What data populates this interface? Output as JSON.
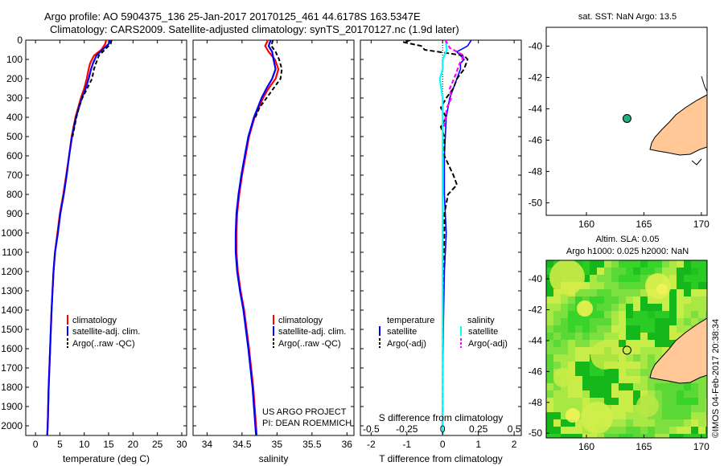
{
  "header": {
    "title_line1": "Argo profile: AO 5904375_136 25-Jan-2017 20170125_461 44.6178S 163.5347E",
    "title_line2": "Climatology: CARS2009. Satellite-adjusted climatology: synTS_20170127.nc (1.9d later)"
  },
  "colors": {
    "climatology": "#ff0000",
    "satellite": "#0000ff",
    "argo": "#000000",
    "salinity_sat": "#00ffff",
    "salinity_argo": "#ff00ff",
    "land": "#ffc896",
    "sla_field": "#22d02a",
    "marker": "#20b080"
  },
  "annotations": {
    "project": "US ARGO PROJECT",
    "pi": "PI: DEAN ROEMMICH",
    "watermark": "©IMOS 04-Feb-2017 20:38:34"
  },
  "chart_data": [
    {
      "id": "temperature",
      "type": "line",
      "xlabel": "temperature (deg C)",
      "ylabel": "",
      "xlim": [
        -2,
        31
      ],
      "ylim": [
        2050,
        0
      ],
      "xticks": [
        "0",
        "5",
        "10",
        "15",
        "20",
        "25",
        "30"
      ],
      "xtick_values": [
        0,
        5,
        10,
        15,
        20,
        25,
        30
      ],
      "yticks": [
        "0",
        "100",
        "200",
        "300",
        "400",
        "500",
        "600",
        "700",
        "800",
        "900",
        "1000",
        "1100",
        "1200",
        "1300",
        "1400",
        "1500",
        "1600",
        "1700",
        "1800",
        "1900",
        "2000"
      ],
      "ytick_values": [
        0,
        100,
        200,
        300,
        400,
        500,
        600,
        700,
        800,
        900,
        1000,
        1100,
        1200,
        1300,
        1400,
        1500,
        1600,
        1700,
        1800,
        1900,
        2000
      ],
      "legend": [
        "climatology",
        "satellite-adj. clim.",
        "Argo(..raw -QC)"
      ],
      "series": [
        {
          "name": "climatology",
          "depth": [
            0,
            20,
            50,
            80,
            120,
            150,
            200,
            250,
            300,
            400,
            500,
            600,
            700,
            800,
            900,
            1000,
            1100,
            1200,
            1400,
            1600,
            1800,
            2000,
            2050
          ],
          "values": [
            14.5,
            14.3,
            13.5,
            12.0,
            11.2,
            10.9,
            10.5,
            10.0,
            9.3,
            8.2,
            7.4,
            6.9,
            6.3,
            5.7,
            5.0,
            4.5,
            4.0,
            3.7,
            3.3,
            3.0,
            2.7,
            2.5,
            2.4
          ]
        },
        {
          "name": "satellite-adj. clim.",
          "depth": [
            0,
            20,
            50,
            80,
            120,
            150,
            200,
            250,
            300,
            400,
            500,
            600,
            700,
            800,
            900,
            1000,
            1100,
            1200,
            1400,
            1600,
            1800,
            2000,
            2050
          ],
          "values": [
            15.3,
            15.0,
            13.7,
            12.5,
            11.8,
            11.4,
            10.9,
            10.3,
            9.5,
            8.3,
            7.5,
            6.9,
            6.4,
            5.8,
            5.1,
            4.6,
            4.0,
            3.7,
            3.3,
            3.0,
            2.7,
            2.5,
            2.4
          ]
        },
        {
          "name": "Argo(..raw -QC)",
          "depth": [
            0,
            20,
            50,
            80,
            120,
            150,
            200,
            250,
            300,
            350,
            400,
            500
          ],
          "values": [
            15.6,
            15.4,
            14.2,
            13.0,
            12.4,
            12.0,
            11.6,
            10.6,
            9.6,
            8.9,
            8.4,
            7.6
          ]
        }
      ]
    },
    {
      "id": "salinity",
      "type": "line",
      "xlabel": "salinity",
      "xlim": [
        33.8,
        36.1
      ],
      "ylim": [
        2050,
        0
      ],
      "xticks": [
        "34",
        "34.5",
        "35",
        "35.5",
        "36"
      ],
      "xtick_values": [
        34,
        34.5,
        35,
        35.5,
        36
      ],
      "legend": [
        "climatology",
        "satellite-adj. clim.",
        "Argo(..raw -QC)"
      ],
      "series": [
        {
          "name": "climatology",
          "depth": [
            0,
            30,
            60,
            100,
            150,
            200,
            250,
            300,
            400,
            500,
            600,
            700,
            800,
            900,
            1000,
            1100,
            1200,
            1300,
            1400,
            1600,
            1800,
            2000,
            2050
          ],
          "values": [
            34.87,
            34.83,
            34.88,
            34.97,
            35.02,
            34.98,
            34.88,
            34.8,
            34.68,
            34.6,
            34.55,
            34.5,
            34.46,
            34.43,
            34.42,
            34.42,
            34.44,
            34.48,
            34.53,
            34.6,
            34.66,
            34.7,
            34.71
          ]
        },
        {
          "name": "satellite-adj. clim.",
          "depth": [
            0,
            30,
            60,
            100,
            150,
            200,
            250,
            300,
            400,
            500,
            600,
            700,
            800,
            900,
            1000,
            1100,
            1200,
            1300,
            1400,
            1600,
            1800,
            2000,
            2050
          ],
          "values": [
            34.91,
            34.88,
            34.93,
            34.95,
            34.98,
            34.93,
            34.85,
            34.78,
            34.67,
            34.59,
            34.54,
            34.49,
            34.45,
            34.42,
            34.41,
            34.41,
            34.43,
            34.47,
            34.52,
            34.59,
            34.65,
            34.69,
            34.7
          ]
        },
        {
          "name": "Argo(..raw -QC)",
          "depth": [
            0,
            30,
            60,
            100,
            150,
            200,
            250,
            300,
            350,
            400
          ],
          "values": [
            34.94,
            34.92,
            34.98,
            35.03,
            35.07,
            35.05,
            34.95,
            34.85,
            34.75,
            34.69
          ]
        }
      ]
    },
    {
      "id": "difference",
      "type": "line",
      "xlabel": "T difference from climatology",
      "xlabel_top": "S difference from climatology",
      "xlim": [
        -2.3,
        2.2
      ],
      "ylim": [
        2050,
        0
      ],
      "xticks": [
        "-2",
        "-1",
        "0",
        "1",
        "2"
      ],
      "xtick_values": [
        -2,
        -1,
        0,
        1,
        2
      ],
      "sticks": [
        "-0.5",
        "-0.25",
        "0",
        "0.25",
        "0.5"
      ],
      "stick_values": [
        -0.5,
        -0.25,
        0,
        0.25,
        0.5
      ],
      "legend_temperature_title": "temperature",
      "legend_salinity_title": "salinity",
      "legend": [
        "satellite",
        "Argo(-adj)",
        "satellite",
        "Argo(-adj)"
      ],
      "series": [
        {
          "name": "temperature satellite",
          "depth": [
            0,
            30,
            60,
            100,
            120,
            150,
            200,
            300,
            400,
            600,
            800,
            1000,
            1200,
            1500,
            1800,
            2050
          ],
          "values": [
            0.8,
            0.7,
            0.4,
            0.6,
            0.5,
            0.5,
            0.4,
            0.2,
            0.1,
            0.05,
            0.05,
            0.1,
            0.05,
            0.02,
            0.0,
            0.0
          ]
        },
        {
          "name": "temperature Argo(-adj)",
          "depth": [
            0,
            10,
            30,
            50,
            80,
            100,
            150,
            200,
            250,
            300,
            350,
            400,
            450,
            500,
            600,
            700,
            750,
            800,
            850,
            900,
            1000,
            1200,
            1500,
            2050
          ],
          "values": [
            -0.9,
            -1.1,
            -0.6,
            -0.5,
            0.6,
            0.7,
            0.6,
            0.4,
            0.3,
            0.1,
            -0.05,
            0.1,
            -0.05,
            0.05,
            0.05,
            0.3,
            0.4,
            0.15,
            0.1,
            0.05,
            0.05,
            0.02,
            0.0,
            0.0
          ]
        },
        {
          "name": "salinity satellite",
          "depth": [
            0,
            50,
            100,
            150,
            200,
            300,
            400,
            600,
            800,
            1000,
            1500,
            2050
          ],
          "values": [
            0.02,
            0.03,
            0.0,
            0.0,
            -0.02,
            0.0,
            0.0,
            0.0,
            0.0,
            0.0,
            0.0,
            0.0
          ]
        },
        {
          "name": "salinity Argo(-adj)",
          "depth": [
            0,
            40,
            80,
            120,
            160,
            200,
            250,
            300,
            350,
            400,
            450
          ],
          "values": [
            0.02,
            0.05,
            0.15,
            0.12,
            0.1,
            0.08,
            0.05,
            0.06,
            0.03,
            0.02,
            0.01
          ]
        }
      ]
    },
    {
      "id": "sst_map",
      "type": "scatter",
      "title": "sat. SST: NaN Argo: 13.5",
      "xlim": [
        156.5,
        170.5
      ],
      "ylim": [
        -50.8,
        -38.8
      ],
      "xticks": [
        "160",
        "165",
        "170"
      ],
      "xtick_values": [
        160,
        165,
        170
      ],
      "yticks": [
        "-40",
        "-42",
        "-44",
        "-46",
        "-48",
        "-50"
      ],
      "ytick_values": [
        -40,
        -42,
        -44,
        -46,
        -48,
        -50
      ],
      "point": {
        "lon": 163.53,
        "lat": -44.62
      }
    },
    {
      "id": "sla_map",
      "type": "heatmap",
      "title_line1": "Altim. SLA: 0.05",
      "title_line2": "Argo h1000: 0.025 h2000: NaN",
      "xlim": [
        156.5,
        170.5
      ],
      "ylim": [
        -50.3,
        -38.8
      ],
      "xticks": [
        "160",
        "165",
        "170"
      ],
      "xtick_values": [
        160,
        165,
        170
      ],
      "yticks": [
        "-40",
        "-42",
        "-44",
        "-46",
        "-48",
        "-50"
      ],
      "ytick_values": [
        -40,
        -42,
        -44,
        -46,
        -48,
        -50
      ],
      "point": {
        "lon": 163.53,
        "lat": -44.62
      }
    }
  ]
}
